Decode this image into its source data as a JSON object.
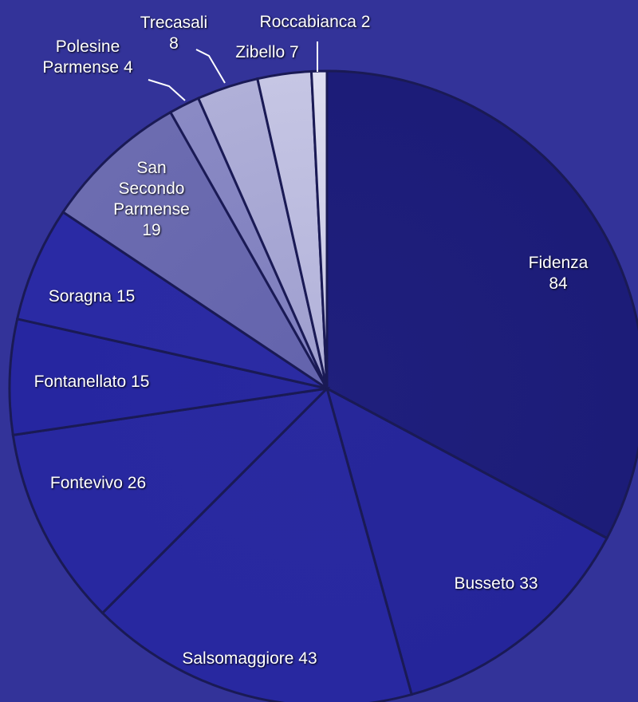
{
  "chart_data": {
    "type": "pie",
    "categories": [
      "Fidenza",
      "Busseto",
      "Salsomaggiore",
      "Fontevivo",
      "Fontanellato",
      "Soragna",
      "San Secondo Parmense",
      "Polesine Parmense",
      "Trecasali",
      "Zibello",
      "Roccabianca"
    ],
    "values": [
      84,
      33,
      43,
      26,
      15,
      15,
      19,
      4,
      8,
      7,
      2
    ],
    "colors": [
      "#1c1c78",
      "#25259a",
      "#2828a0",
      "#2828a0",
      "#2626a0",
      "#2a2aa4",
      "#6c6cb0",
      "#8a8ac4",
      "#b0b0d8",
      "#c6c6e4",
      "#dedef0"
    ]
  }
}
